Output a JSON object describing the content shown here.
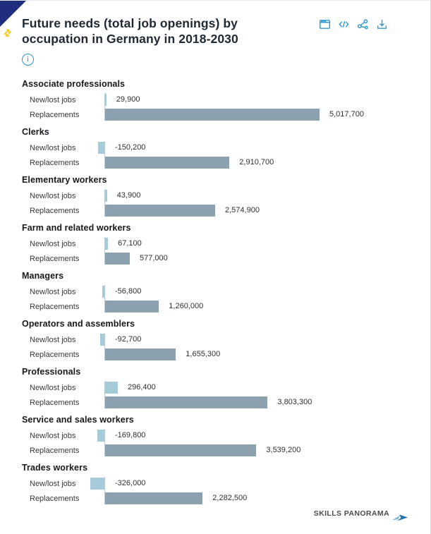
{
  "header": {
    "title": "Future needs (total job openings) by occupation in Germany in 2018-2030",
    "title_line1": "Future needs (total job openings) by",
    "title_line2": "occupation in Germany in 2018-2030",
    "info_icon": {
      "name": "info-icon",
      "glyph": "i",
      "color": "#2e94d2"
    },
    "toolbar": {
      "buttons": [
        {
          "name": "data-table-button",
          "icon": "data-table-icon",
          "label": "Data table"
        },
        {
          "name": "embed-code-button",
          "icon": "embed-code-icon",
          "label": "Embed"
        },
        {
          "name": "share-button",
          "icon": "share-icon",
          "label": "Share"
        },
        {
          "name": "download-button",
          "icon": "download-icon",
          "label": "Download"
        }
      ],
      "icon_color": "#2e94d2"
    },
    "corner_ribbon": {
      "name": "corner-ribbon",
      "glyph": "⇄",
      "color": "#1e2d7d",
      "glyph_color": "#f6c51e"
    }
  },
  "chart_data": {
    "type": "bar",
    "orientation": "horizontal",
    "title": "Future needs (total job openings) by occupation in Germany in 2018-2030",
    "xlim": [
      -326000,
      5017700
    ],
    "max_value": 5017700,
    "grid": false,
    "legend": "none",
    "zero_axis_color": "#b7cbd7",
    "series": [
      {
        "name": "New/lost jobs",
        "color": "#a5cad8"
      },
      {
        "name": "Replacements",
        "color": "#8ba1ae"
      }
    ],
    "groups": [
      {
        "category": "Associate professionals",
        "values": [
          29900,
          5017700
        ],
        "value_labels": [
          "29,900",
          "5,017,700"
        ]
      },
      {
        "category": "Clerks",
        "values": [
          -150200,
          2910700
        ],
        "value_labels": [
          "-150,200",
          "2,910,700"
        ]
      },
      {
        "category": "Elementary workers",
        "values": [
          43900,
          2574900
        ],
        "value_labels": [
          "43,900",
          "2,574,900"
        ]
      },
      {
        "category": "Farm and related workers",
        "values": [
          67100,
          577000
        ],
        "value_labels": [
          "67,100",
          "577,000"
        ]
      },
      {
        "category": "Managers",
        "values": [
          -56800,
          1260000
        ],
        "value_labels": [
          "-56,800",
          "1,260,000"
        ]
      },
      {
        "category": "Operators and assemblers",
        "values": [
          -92700,
          1655300
        ],
        "value_labels": [
          "-92,700",
          "1,655,300"
        ]
      },
      {
        "category": "Professionals",
        "values": [
          296400,
          3803300
        ],
        "value_labels": [
          "296,400",
          "3,803,300"
        ]
      },
      {
        "category": "Service and sales workers",
        "values": [
          -169800,
          3539200
        ],
        "value_labels": [
          "-169,800",
          "3,539,200"
        ]
      },
      {
        "category": "Trades workers",
        "values": [
          -326000,
          2282500
        ],
        "value_labels": [
          "-326,000",
          "2,282,500"
        ]
      }
    ]
  },
  "footer": {
    "brand": "SKILLS PANORAMA",
    "arrow_colors": [
      "#7fb7d9",
      "#1f6fa8"
    ]
  }
}
